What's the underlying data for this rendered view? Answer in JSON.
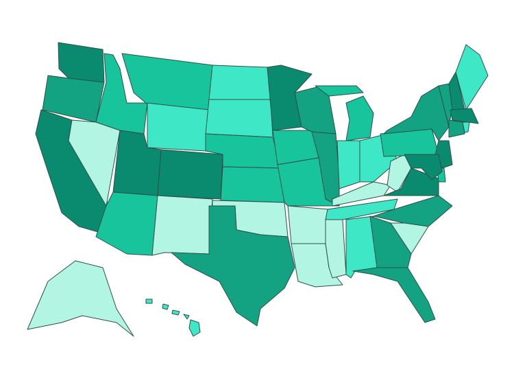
{
  "map": {
    "type": "choropleth",
    "region": "United States",
    "level_colors": [
      "#b2f5e3",
      "#3ee8c6",
      "#18c49c",
      "#13a383",
      "#0a8a6e"
    ],
    "states": {
      "WA": 4,
      "OR": 3,
      "CA": 4,
      "NV": 0,
      "ID": 2,
      "MT": 2,
      "WY": 1,
      "UT": 4,
      "CO": 4,
      "AZ": 2,
      "NM": 0,
      "ND": 1,
      "SD": 1,
      "NE": 2,
      "KS": 2,
      "OK": 0,
      "TX": 3,
      "MN": 4,
      "IA": 2,
      "MO": 2,
      "AR": 0,
      "LA": 0,
      "MS": 0,
      "AL": 1,
      "WI": 3,
      "IL": 3,
      "MI": 2,
      "IN": 1,
      "OH": 1,
      "KY": 0,
      "TN": 1,
      "WV": 0,
      "VA": 4,
      "NC": 3,
      "SC": 0,
      "GA": 3,
      "FL": 3,
      "PA": 2,
      "NY": 3,
      "VT": 3,
      "NH": 4,
      "ME": 1,
      "MA": 4,
      "CT": 3,
      "RI": 1,
      "NJ": 4,
      "DE": 2,
      "MD": 4,
      "AK": 0,
      "HI": 1
    }
  }
}
